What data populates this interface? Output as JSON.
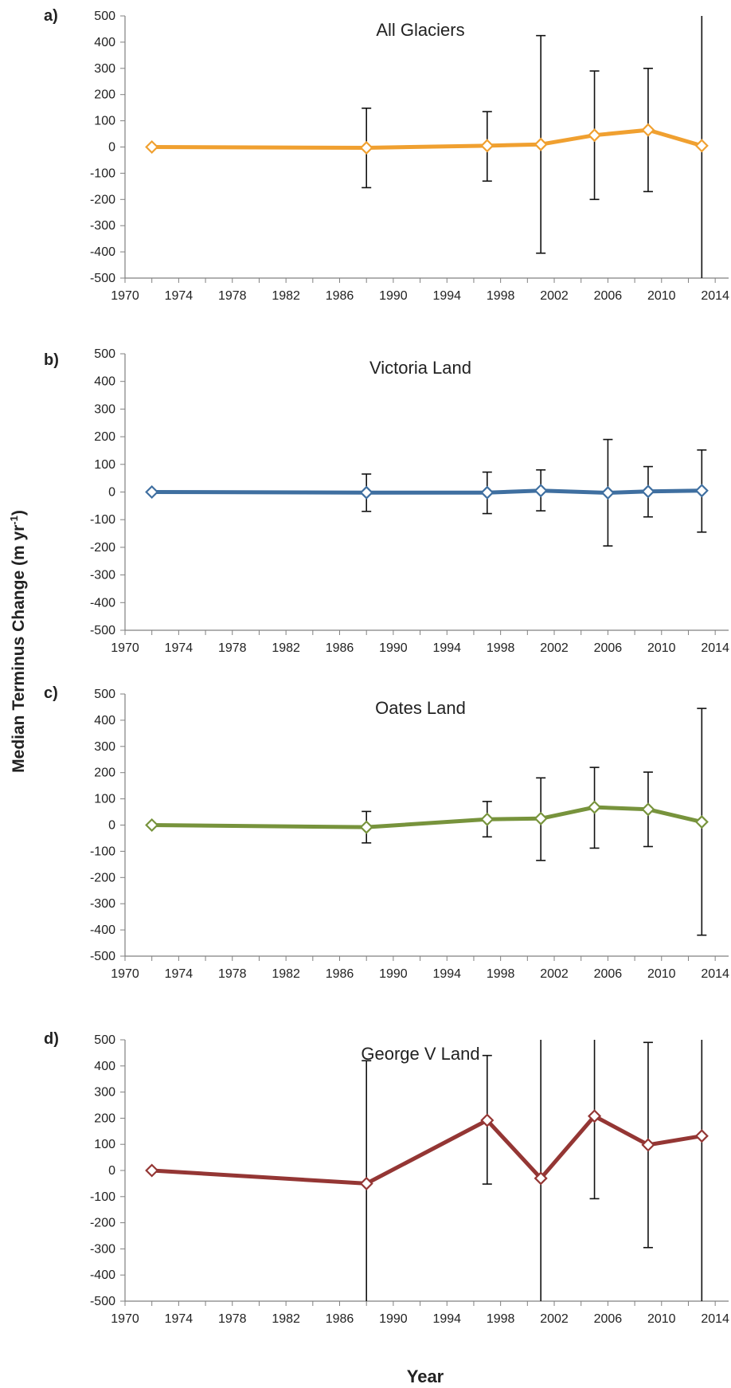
{
  "figure": {
    "ylabel": "Median Terminus Change (m yr",
    "ylabel_sup": "-1",
    "ylabel_close": ")",
    "xlabel": "Year"
  },
  "chart_data": [
    {
      "type": "line",
      "panel_label": "a)",
      "title": "All Glaciers",
      "color": "#F0A030",
      "x": [
        1972,
        1988,
        1997,
        2001,
        2005,
        2009,
        2013
      ],
      "y": [
        0,
        -3,
        5,
        10,
        45,
        65,
        5
      ],
      "err_low": [
        null,
        -155,
        -130,
        -405,
        -200,
        -170,
        -500
      ],
      "err_high": [
        null,
        148,
        135,
        425,
        290,
        300,
        500
      ],
      "xlim": [
        1970,
        2015
      ],
      "ylim": [
        -500,
        500
      ],
      "xticks": [
        1970,
        1974,
        1978,
        1982,
        1986,
        1990,
        1994,
        1998,
        2002,
        2006,
        2010,
        2014
      ],
      "yticks": [
        500,
        400,
        300,
        200,
        100,
        0,
        -100,
        -200,
        -300,
        -400,
        -500
      ],
      "marker": "diamond-open"
    },
    {
      "type": "line",
      "panel_label": "b)",
      "title": "Victoria Land",
      "color": "#3F6FA0",
      "x": [
        1972,
        1988,
        1997,
        2001,
        2006,
        2009,
        2013
      ],
      "y": [
        0,
        -2,
        -2,
        5,
        -3,
        2,
        5
      ],
      "err_low": [
        null,
        -70,
        -78,
        -68,
        -195,
        -90,
        -145
      ],
      "err_high": [
        null,
        65,
        72,
        80,
        190,
        92,
        152
      ],
      "xlim": [
        1970,
        2015
      ],
      "ylim": [
        -500,
        500
      ],
      "xticks": [
        1970,
        1974,
        1978,
        1982,
        1986,
        1990,
        1994,
        1998,
        2002,
        2006,
        2010,
        2014
      ],
      "yticks": [
        500,
        400,
        300,
        200,
        100,
        0,
        -100,
        -200,
        -300,
        -400,
        -500
      ],
      "marker": "diamond-open"
    },
    {
      "type": "line",
      "panel_label": "c)",
      "title": "Oates Land",
      "color": "#77933C",
      "x": [
        1972,
        1988,
        1997,
        2001,
        2005,
        2009,
        2013
      ],
      "y": [
        0,
        -8,
        22,
        25,
        68,
        60,
        12
      ],
      "err_low": [
        null,
        -68,
        -45,
        -135,
        -88,
        -82,
        -420
      ],
      "err_high": [
        null,
        52,
        90,
        180,
        220,
        202,
        445
      ],
      "xlim": [
        1970,
        2015
      ],
      "ylim": [
        -500,
        500
      ],
      "xticks": [
        1970,
        1974,
        1978,
        1982,
        1986,
        1990,
        1994,
        1998,
        2002,
        2006,
        2010,
        2014
      ],
      "yticks": [
        500,
        400,
        300,
        200,
        100,
        0,
        -100,
        -200,
        -300,
        -400,
        -500
      ],
      "marker": "diamond-open"
    },
    {
      "type": "line",
      "panel_label": "d)",
      "title": "George V Land",
      "color": "#943634",
      "x": [
        1972,
        1988,
        1997,
        2001,
        2005,
        2009,
        2013
      ],
      "y": [
        0,
        -50,
        192,
        -30,
        208,
        98,
        132
      ],
      "err_low": [
        null,
        -500,
        -52,
        -500,
        -108,
        -295,
        -500
      ],
      "err_high": [
        null,
        420,
        440,
        500,
        500,
        490,
        500
      ],
      "xlim": [
        1970,
        2015
      ],
      "ylim": [
        -500,
        500
      ],
      "xticks": [
        1970,
        1974,
        1978,
        1982,
        1986,
        1990,
        1994,
        1998,
        2002,
        2006,
        2010,
        2014
      ],
      "yticks": [
        500,
        400,
        300,
        200,
        100,
        0,
        -100,
        -200,
        -300,
        -400,
        -500
      ],
      "marker": "diamond-open"
    }
  ]
}
